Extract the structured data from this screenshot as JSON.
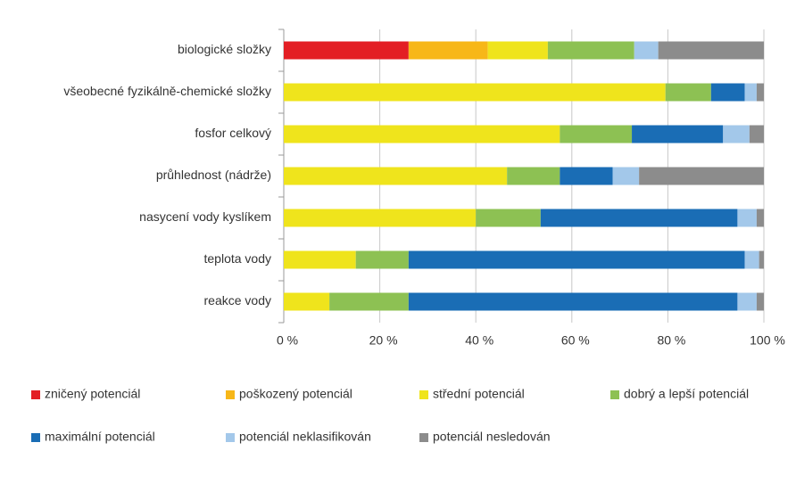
{
  "chart_data": {
    "type": "stacked-bar-horizontal",
    "categories": [
      "biologické složky",
      "všeobecné fyzikálně-chemické složky",
      "fosfor celkový",
      "průhlednost (nádrže)",
      "nasycení vody kyslíkem",
      "teplota vody",
      "reakce vody"
    ],
    "series": [
      {
        "name": "zničený potenciál",
        "color": "#e31e24",
        "values": [
          26,
          0,
          0,
          0,
          0,
          0,
          0
        ]
      },
      {
        "name": "poškozený potenciál",
        "color": "#f7b718",
        "values": [
          16.5,
          0,
          0,
          0,
          0,
          0,
          0
        ]
      },
      {
        "name": "střední potenciál",
        "color": "#efe41c",
        "values": [
          12.5,
          79.5,
          57.5,
          46.5,
          40,
          15,
          9.5
        ]
      },
      {
        "name": "dobrý a lepší  potenciál",
        "color": "#8dc153",
        "values": [
          18,
          9.5,
          15,
          11,
          13.5,
          11,
          16.5
        ]
      },
      {
        "name": "maximální potenciál",
        "color": "#1a6db5",
        "values": [
          0,
          7,
          19,
          11,
          41,
          70,
          68.5
        ]
      },
      {
        "name": "potenciál neklasifikován",
        "color": "#a3c8ea",
        "values": [
          5,
          2.5,
          5.5,
          5.5,
          4,
          3,
          4
        ]
      },
      {
        "name": "potenciál nesledován",
        "color": "#8c8c8c",
        "values": [
          22,
          1.5,
          3,
          26,
          1.5,
          1,
          1.5
        ]
      }
    ],
    "xlim": [
      0,
      100
    ],
    "xticks": [
      {
        "value": 0,
        "label": "0 %"
      },
      {
        "value": 20,
        "label": "20 %"
      },
      {
        "value": 40,
        "label": "40 %"
      },
      {
        "value": 60,
        "label": "60 %"
      },
      {
        "value": 80,
        "label": "80 %"
      },
      {
        "value": 100,
        "label": "100 %"
      }
    ],
    "grid": true
  }
}
